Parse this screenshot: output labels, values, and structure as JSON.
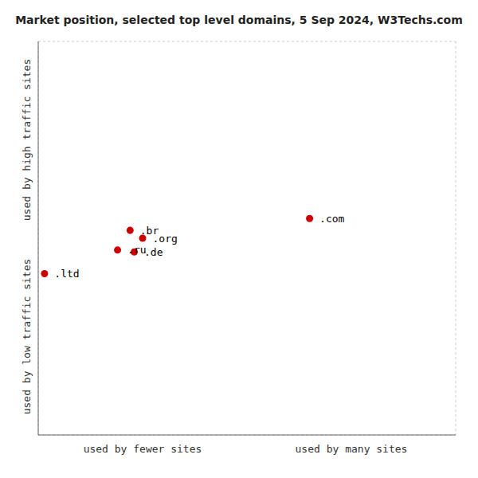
{
  "chart_data": {
    "type": "scatter",
    "title": "Market position, selected top level domains, 5 Sep 2024, W3Techs.com",
    "xlabel": [
      "used by fewer sites",
      "used by many sites"
    ],
    "ylabel": [
      "used by low traffic sites",
      "used by high traffic sites"
    ],
    "x": [
      6.5,
      2.2,
      2.5,
      1.9,
      2.3,
      0.15
    ],
    "values": [
      5.5,
      5.2,
      5.0,
      4.7,
      4.65,
      4.1
    ],
    "labels": [
      ".com",
      ".br",
      ".org",
      ".ru",
      ".de",
      ".ltd"
    ],
    "color": "#cc0000",
    "xlim": [
      0,
      10
    ],
    "ylim": [
      0,
      10
    ],
    "xticks": [
      0,
      2,
      4,
      6,
      8,
      10
    ],
    "yticks": [
      0,
      2,
      4,
      6,
      8,
      10
    ],
    "grid": true,
    "tick_labels": false
  }
}
